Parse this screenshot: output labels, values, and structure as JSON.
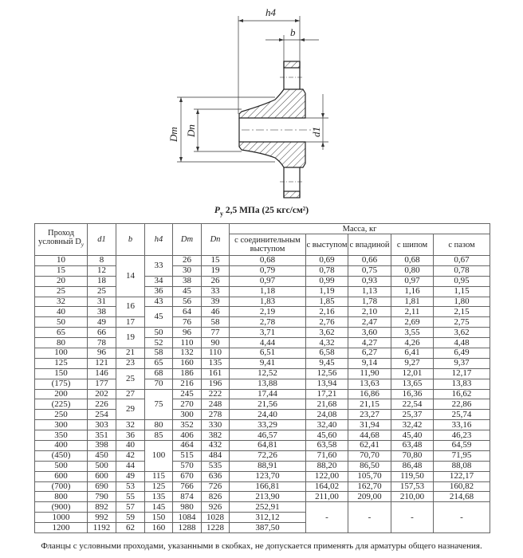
{
  "drawing": {
    "labels": {
      "h4": "h4",
      "b": "b",
      "Dm": "Dm",
      "Dn": "Dn",
      "d1": "d1"
    }
  },
  "title": {
    "prefix": "P",
    "sub": "y",
    "text": " 2,5 МПа (25 кгс/см²)"
  },
  "table": {
    "headers": {
      "dy": "Проход условный D",
      "dy_sub": "y",
      "d1": "d1",
      "b": "b",
      "h4": "h4",
      "dm": "Dm",
      "dn": "Dn",
      "mass": "Масса, кг",
      "mass_cols": [
        "с соединительным выступом",
        "с выступом",
        "с впадиной",
        "с шипом",
        "с пазом"
      ]
    },
    "rows": [
      [
        "10",
        "8",
        "14",
        "33",
        "26",
        "15",
        "0,68",
        "0,69",
        "0,66",
        "0,68",
        "0,67"
      ],
      [
        "15",
        "12",
        "14",
        "33",
        "30",
        "19",
        "0,79",
        "0,78",
        "0,75",
        "0,80",
        "0,78"
      ],
      [
        "20",
        "18",
        "14",
        "34",
        "38",
        "26",
        "0,97",
        "0,99",
        "0,93",
        "0,97",
        "0,95"
      ],
      [
        "25",
        "25",
        "14",
        "36",
        "45",
        "33",
        "1,18",
        "1,19",
        "1,13",
        "1,16",
        "1,15"
      ],
      [
        "32",
        "31",
        "16",
        "43",
        "56",
        "39",
        "1,83",
        "1,85",
        "1,78",
        "1,81",
        "1,80"
      ],
      [
        "40",
        "38",
        "16",
        "45",
        "64",
        "46",
        "2,19",
        "2,16",
        "2,10",
        "2,11",
        "2,15"
      ],
      [
        "50",
        "49",
        "17",
        "45",
        "76",
        "58",
        "2,78",
        "2,76",
        "2,47",
        "2,69",
        "2,75"
      ],
      [
        "65",
        "66",
        "19",
        "50",
        "96",
        "77",
        "3,71",
        "3,62",
        "3,60",
        "3,55",
        "3,62"
      ],
      [
        "80",
        "78",
        "19",
        "52",
        "110",
        "90",
        "4,44",
        "4,32",
        "4,27",
        "4,26",
        "4,48"
      ],
      [
        "100",
        "96",
        "21",
        "58",
        "132",
        "110",
        "6,51",
        "6,58",
        "6,27",
        "6,41",
        "6,49"
      ],
      [
        "125",
        "121",
        "23",
        "65",
        "160",
        "135",
        "9,41",
        "9,45",
        "9,14",
        "9,27",
        "9,37"
      ],
      [
        "150",
        "146",
        "25",
        "68",
        "186",
        "161",
        "12,52",
        "12,56",
        "11,90",
        "12,01",
        "12,17"
      ],
      [
        "(175)",
        "177",
        "25",
        "70",
        "216",
        "196",
        "13,88",
        "13,94",
        "13,63",
        "13,65",
        "13,83"
      ],
      [
        "200",
        "202",
        "27",
        "75",
        "245",
        "222",
        "17,44",
        "17,21",
        "16,86",
        "16,36",
        "16,62"
      ],
      [
        "(225)",
        "226",
        "29",
        "75",
        "270",
        "248",
        "21,56",
        "21,68",
        "21,15",
        "22,54",
        "22,86"
      ],
      [
        "250",
        "254",
        "29",
        "75",
        "300",
        "278",
        "24,40",
        "24,08",
        "23,27",
        "25,37",
        "25,74"
      ],
      [
        "300",
        "303",
        "32",
        "80",
        "352",
        "330",
        "33,29",
        "32,40",
        "31,94",
        "32,42",
        "33,16"
      ],
      [
        "350",
        "351",
        "36",
        "85",
        "406",
        "382",
        "46,57",
        "45,60",
        "44,68",
        "45,40",
        "46,23"
      ],
      [
        "400",
        "398",
        "40",
        "100",
        "464",
        "432",
        "64,81",
        "63,58",
        "62,41",
        "63,48",
        "64,59"
      ],
      [
        "(450)",
        "450",
        "42",
        "100",
        "515",
        "484",
        "72,26",
        "71,60",
        "70,70",
        "70,80",
        "71,95"
      ],
      [
        "500",
        "500",
        "44",
        "100",
        "570",
        "535",
        "88,91",
        "88,20",
        "86,50",
        "86,48",
        "88,08"
      ],
      [
        "600",
        "600",
        "49",
        "115",
        "670",
        "636",
        "123,70",
        "122,00",
        "105,70",
        "119,50",
        "122,17"
      ],
      [
        "(700)",
        "690",
        "53",
        "125",
        "766",
        "726",
        "166,81",
        "164,02",
        "162,70",
        "157,53",
        "160,82"
      ],
      [
        "800",
        "790",
        "55",
        "135",
        "874",
        "826",
        "213,90",
        "211,00",
        "209,00",
        "210,00",
        "214,68"
      ],
      [
        "(900)",
        "892",
        "57",
        "145",
        "980",
        "926",
        "252,91",
        "-",
        "-",
        "-",
        "-"
      ],
      [
        "1000",
        "992",
        "59",
        "150",
        "1084",
        "1028",
        "312,12",
        "-",
        "-",
        "-",
        "-"
      ],
      [
        "1200",
        "1192",
        "62",
        "160",
        "1288",
        "1228",
        "387,50",
        "-",
        "-",
        "-",
        "-"
      ]
    ]
  },
  "footnote": "Фланцы с условными проходами, указанными в скобках, не допускается применять для арматуры общего назначения."
}
